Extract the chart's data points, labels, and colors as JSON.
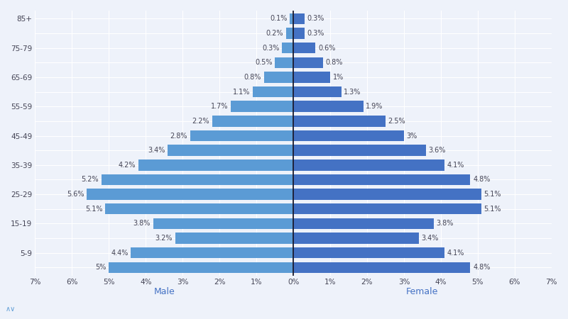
{
  "age_labels_display": [
    "85+",
    "",
    "75-79",
    "",
    "65-69",
    "",
    "55-59",
    "",
    "45-49",
    "",
    "35-39",
    "",
    "25-29",
    "",
    "15-19",
    "",
    "5-9",
    ""
  ],
  "male": [
    -0.1,
    -0.2,
    -0.3,
    -0.5,
    -0.8,
    -1.1,
    -1.7,
    -2.2,
    -2.8,
    -3.4,
    -4.2,
    -5.2,
    -5.6,
    -5.1,
    -3.8,
    -3.2,
    -4.4,
    -5.0
  ],
  "female": [
    0.3,
    0.3,
    0.6,
    0.8,
    1.0,
    1.3,
    1.9,
    2.5,
    3.0,
    3.6,
    4.1,
    4.8,
    5.1,
    5.1,
    3.8,
    3.4,
    4.1,
    4.8
  ],
  "male_labels": [
    "0.1%",
    "0.2%",
    "0.3%",
    "0.5%",
    "0.8%",
    "1.1%",
    "1.7%",
    "2.2%",
    "2.8%",
    "3.4%",
    "4.2%",
    "5.2%",
    "5.6%",
    "5.1%",
    "3.8%",
    "3.2%",
    "4.4%",
    "5%"
  ],
  "female_labels": [
    "0.3%",
    "0.3%",
    "0.6%",
    "0.8%",
    "1%",
    "1.3%",
    "1.9%",
    "2.5%",
    "3%",
    "3.6%",
    "4.1%",
    "4.8%",
    "5.1%",
    "5.1%",
    "3.8%",
    "3.4%",
    "4.1%",
    "4.8%"
  ],
  "male_color": "#5b9bd5",
  "female_color": "#4472c4",
  "background_color": "#eef2fa",
  "grid_color": "#ffffff",
  "xlim": [
    -7,
    7
  ],
  "xticks": [
    -7,
    -6,
    -5,
    -4,
    -3,
    -2,
    -1,
    0,
    1,
    2,
    3,
    4,
    5,
    6,
    7
  ],
  "xtick_labels": [
    "7%",
    "6%",
    "5%",
    "4%",
    "3%",
    "2%",
    "1%",
    "0%",
    "1%",
    "2%",
    "3%",
    "4%",
    "5%",
    "6%",
    "7%"
  ],
  "male_axis_label": "Male",
  "female_axis_label": "Female",
  "bar_height": 0.75,
  "text_fontsize": 7.0,
  "axis_label_color": "#4472c4",
  "text_color": "#444455"
}
